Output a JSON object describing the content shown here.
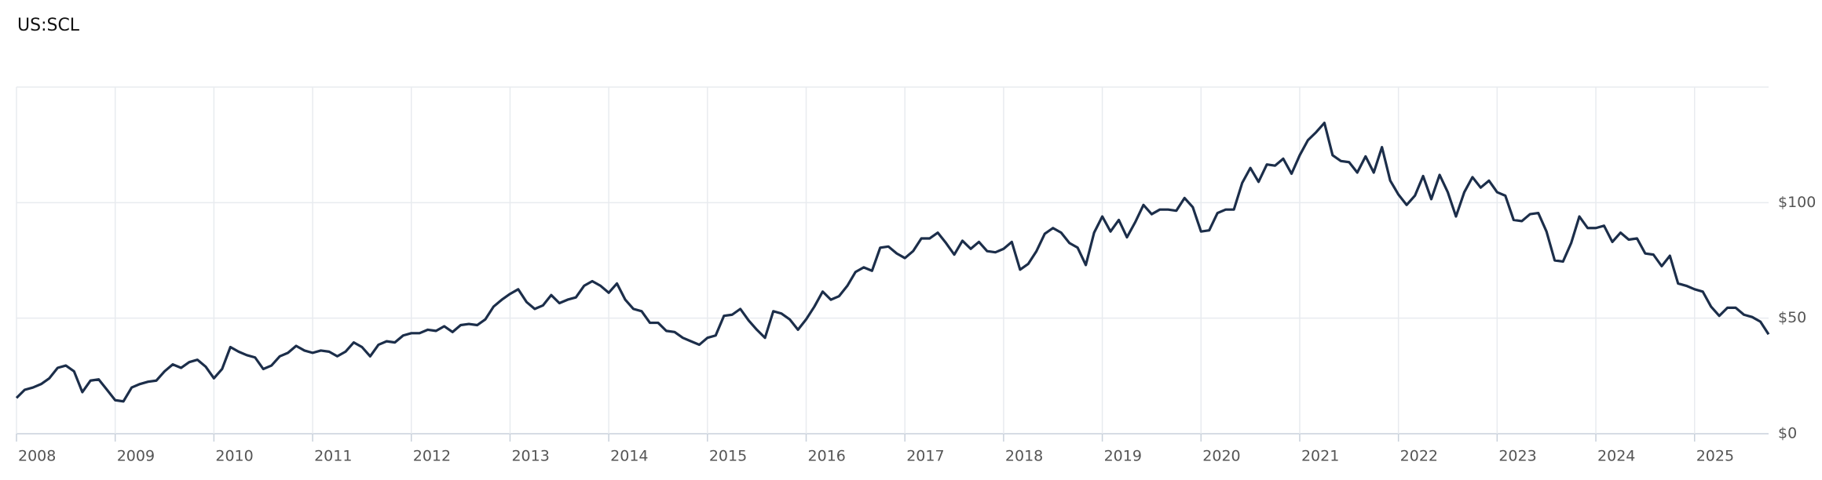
{
  "chart_data": {
    "type": "line",
    "title": "US:SCL",
    "x": [
      2008,
      2008.083,
      2008.167,
      2008.25,
      2008.333,
      2008.417,
      2008.5,
      2008.583,
      2008.667,
      2008.75,
      2008.833,
      2008.917,
      2009,
      2009.083,
      2009.167,
      2009.25,
      2009.333,
      2009.417,
      2009.5,
      2009.583,
      2009.667,
      2009.75,
      2009.833,
      2009.917,
      2010,
      2010.083,
      2010.167,
      2010.25,
      2010.333,
      2010.417,
      2010.5,
      2010.583,
      2010.667,
      2010.75,
      2010.833,
      2010.917,
      2011,
      2011.083,
      2011.167,
      2011.25,
      2011.333,
      2011.417,
      2011.5,
      2011.583,
      2011.667,
      2011.75,
      2011.833,
      2011.917,
      2012,
      2012.083,
      2012.167,
      2012.25,
      2012.333,
      2012.417,
      2012.5,
      2012.583,
      2012.667,
      2012.75,
      2012.833,
      2012.917,
      2013,
      2013.083,
      2013.167,
      2013.25,
      2013.333,
      2013.417,
      2013.5,
      2013.583,
      2013.667,
      2013.75,
      2013.833,
      2013.917,
      2014,
      2014.083,
      2014.167,
      2014.25,
      2014.333,
      2014.417,
      2014.5,
      2014.583,
      2014.667,
      2014.75,
      2014.833,
      2014.917,
      2015,
      2015.083,
      2015.167,
      2015.25,
      2015.333,
      2015.417,
      2015.5,
      2015.583,
      2015.667,
      2015.75,
      2015.833,
      2015.917,
      2016,
      2016.083,
      2016.167,
      2016.25,
      2016.333,
      2016.417,
      2016.5,
      2016.583,
      2016.667,
      2016.75,
      2016.833,
      2016.917,
      2017,
      2017.083,
      2017.167,
      2017.25,
      2017.333,
      2017.417,
      2017.5,
      2017.583,
      2017.667,
      2017.75,
      2017.833,
      2017.917,
      2018,
      2018.083,
      2018.167,
      2018.25,
      2018.333,
      2018.417,
      2018.5,
      2018.583,
      2018.667,
      2018.75,
      2018.833,
      2018.917,
      2019,
      2019.083,
      2019.167,
      2019.25,
      2019.333,
      2019.417,
      2019.5,
      2019.583,
      2019.667,
      2019.75,
      2019.833,
      2019.917,
      2020,
      2020.083,
      2020.167,
      2020.25,
      2020.333,
      2020.417,
      2020.5,
      2020.583,
      2020.667,
      2020.75,
      2020.833,
      2020.917,
      2021,
      2021.083,
      2021.167,
      2021.25,
      2021.333,
      2021.417,
      2021.5,
      2021.583,
      2021.667,
      2021.75,
      2021.833,
      2021.917,
      2022,
      2022.083,
      2022.167,
      2022.25,
      2022.333,
      2022.417,
      2022.5,
      2022.583,
      2022.667,
      2022.75,
      2022.833,
      2022.917,
      2023,
      2023.083,
      2023.167,
      2023.25,
      2023.333,
      2023.417,
      2023.5,
      2023.583,
      2023.667,
      2023.75,
      2023.833,
      2023.917,
      2024,
      2024.083,
      2024.167,
      2024.25,
      2024.333,
      2024.417,
      2024.5,
      2024.583,
      2024.667,
      2024.75,
      2024.833,
      2024.917,
      2025,
      2025.083,
      2025.167,
      2025.25,
      2025.333,
      2025.417,
      2025.5,
      2025.583,
      2025.667,
      2025.75
    ],
    "series": [
      {
        "color": "#1c2e4a",
        "values": [
          15.5,
          19,
          20,
          21.5,
          24,
          28.5,
          29.5,
          27,
          18,
          23,
          23.5,
          19,
          14.5,
          14,
          20,
          21.5,
          22.5,
          23,
          27,
          30,
          28.5,
          31,
          32,
          29,
          24,
          28,
          37.5,
          35.5,
          34,
          33,
          28,
          29.5,
          33.5,
          35,
          38,
          36,
          35,
          36,
          35.5,
          33.5,
          35.5,
          39.5,
          37.5,
          33.5,
          38.5,
          40,
          39.5,
          42.5,
          43.5,
          43.5,
          45,
          44.5,
          46.5,
          44,
          47,
          47.5,
          47,
          49.5,
          55,
          58,
          60.5,
          62.5,
          57,
          54,
          55.5,
          60,
          56.5,
          58,
          59,
          64,
          66,
          64,
          61,
          65,
          58,
          54,
          53,
          48,
          48,
          44.5,
          44,
          41.5,
          40,
          38.5,
          41.5,
          42.5,
          51,
          51.5,
          54,
          49,
          45,
          41.5,
          53,
          52,
          49.5,
          45,
          49.5,
          55,
          61.5,
          58,
          59.5,
          64,
          70,
          72,
          70.5,
          80.5,
          81,
          78,
          76,
          79,
          84.5,
          84.5,
          87,
          82.5,
          77.5,
          83.5,
          80,
          83,
          79,
          78.5,
          80,
          83,
          71,
          73.5,
          79,
          86.5,
          89,
          87,
          82.5,
          80.5,
          73,
          87,
          94,
          87.5,
          92.5,
          85,
          91.5,
          99,
          95,
          97,
          97,
          96.5,
          102,
          98,
          87.5,
          88,
          95.5,
          97,
          97,
          108.5,
          115,
          109,
          116.5,
          116,
          119,
          112.5,
          120.5,
          127,
          130.5,
          134.5,
          120.5,
          118,
          117.5,
          113,
          120,
          113,
          124,
          109.5,
          103.5,
          99,
          103,
          111.5,
          101.5,
          112,
          104.5,
          94,
          104.5,
          111,
          106.5,
          109.5,
          104.5,
          103,
          92.5,
          92,
          95,
          95.5,
          87.5,
          75,
          74.5,
          82.5,
          94,
          89,
          89,
          90,
          83,
          87,
          84,
          84.5,
          78,
          77.5,
          72.5,
          77,
          65,
          64,
          62.5,
          61.5,
          55,
          51,
          54.5,
          54.5,
          51.5,
          50.5,
          48.5,
          43
        ]
      }
    ],
    "xlim": [
      2008,
      2025.75
    ],
    "xticks": [
      2008,
      2009,
      2010,
      2011,
      2012,
      2013,
      2014,
      2015,
      2016,
      2017,
      2018,
      2019,
      2020,
      2021,
      2022,
      2023,
      2024,
      2025
    ],
    "ylim": [
      0,
      150
    ],
    "yticks": [
      {
        "value": 0,
        "label": "$0"
      },
      {
        "value": 50,
        "label": "$50"
      },
      {
        "value": 100,
        "label": "$100"
      }
    ],
    "grid": true
  }
}
